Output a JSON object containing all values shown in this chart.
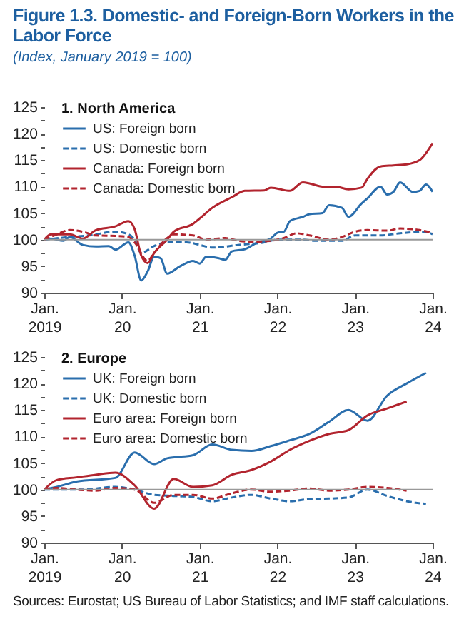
{
  "chart_data": [
    {
      "type": "line",
      "title": "1. North America",
      "annotations": [
        "Figure 1.3.  Domestic- and Foreign-Born Workers in the Labor Force",
        "(Index, January 2019 = 100)"
      ],
      "xlim": [
        "2019-01",
        "2024-01"
      ],
      "xticks": [
        {
          "value": "2019-01",
          "label": "Jan.\n2019"
        },
        {
          "value": "2020-01",
          "label": "Jan.\n20"
        },
        {
          "value": "2021-01",
          "label": "Jan.\n21"
        },
        {
          "value": "2022-01",
          "label": "Jan.\n22"
        },
        {
          "value": "2023-01",
          "label": "Jan.\n23"
        },
        {
          "value": "2024-01",
          "label": "Jan.\n24"
        }
      ],
      "ylim": [
        90,
        125
      ],
      "yticks": [
        90,
        {
          "value": 92.5,
          "label": null
        },
        95,
        {
          "value": 97.5,
          "label": null
        },
        100,
        {
          "value": 102.5,
          "label": null
        },
        105,
        {
          "value": 107.5,
          "label": null
        },
        110,
        {
          "value": 112.5,
          "label": null
        },
        115,
        {
          "value": 117.5,
          "label": null
        },
        120,
        {
          "value": 122.5,
          "label": null
        },
        125
      ],
      "legend": "top left",
      "grid": false,
      "ref_lines": [
        {
          "axis": "y",
          "value": 100,
          "color": "#999999"
        }
      ],
      "series": [
        {
          "name": "US: Foreign born",
          "color": "#2a6ead",
          "line_style": "solid",
          "x": [
            "2019-01",
            "2019-02",
            "2019-04",
            "2019-05",
            "2019-07",
            "2019-09",
            "2019-11",
            "2019-12",
            "2020-02",
            "2020-03",
            "2020-04",
            "2020-05",
            "2020-06",
            "2020-07",
            "2020-08",
            "2020-10",
            "2020-12",
            "2021-01",
            "2021-02",
            "2021-04",
            "2021-05",
            "2021-06",
            "2021-08",
            "2021-10",
            "2021-12",
            "2022-01",
            "2022-02",
            "2022-03",
            "2022-05",
            "2022-06",
            "2022-08",
            "2022-09",
            "2022-11",
            "2022-12",
            "2023-02",
            "2023-03",
            "2023-05",
            "2023-06",
            "2023-07",
            "2023-08",
            "2023-10",
            "2023-11",
            "2023-12",
            "2024-01"
          ],
          "values": [
            100,
            100.2,
            99.8,
            100.5,
            99,
            98.7,
            98.8,
            98.1,
            99.5,
            97,
            92.3,
            94,
            96.8,
            96.5,
            93.6,
            95,
            96,
            95.5,
            96.8,
            96.5,
            96.2,
            97.8,
            98.2,
            99.5,
            100.2,
            101.3,
            101.5,
            103.5,
            104.3,
            104.8,
            105,
            106.5,
            106,
            104.3,
            106.8,
            107.8,
            110,
            108.5,
            109,
            110.8,
            109,
            109.2,
            110.4,
            109
          ]
        },
        {
          "name": "US: Domestic born",
          "color": "#2a6ead",
          "line_style": "dashed",
          "x": [
            "2019-01",
            "2019-05",
            "2019-08",
            "2019-12",
            "2020-02",
            "2020-03",
            "2020-04",
            "2020-06",
            "2020-08",
            "2020-11",
            "2021-01",
            "2021-03",
            "2021-07",
            "2021-11",
            "2022-01",
            "2022-05",
            "2022-07",
            "2022-11",
            "2023-01",
            "2023-05",
            "2023-08",
            "2023-12",
            "2024-01"
          ],
          "values": [
            100,
            100.5,
            100.8,
            101.5,
            101,
            100,
            97.5,
            98.8,
            99.5,
            99.5,
            99,
            98.5,
            99,
            99.5,
            100,
            100,
            99.8,
            99.8,
            100.8,
            100.8,
            101.2,
            101.5,
            101
          ]
        },
        {
          "name": "Canada: Foreign born",
          "color": "#b2242e",
          "line_style": "solid",
          "x": [
            "2019-01",
            "2019-02",
            "2019-05",
            "2019-07",
            "2019-09",
            "2019-12",
            "2020-02",
            "2020-03",
            "2020-04",
            "2020-05",
            "2020-06",
            "2020-08",
            "2020-09",
            "2020-12",
            "2021-01",
            "2021-03",
            "2021-06",
            "2021-08",
            "2021-11",
            "2021-12",
            "2022-03",
            "2022-05",
            "2022-06",
            "2022-08",
            "2022-10",
            "2022-12",
            "2023-02",
            "2023-03",
            "2023-05",
            "2023-07",
            "2023-09",
            "2023-11",
            "2024-01"
          ],
          "values": [
            100,
            101,
            101,
            100.2,
            101.8,
            102.5,
            103.5,
            102,
            97,
            95.6,
            97.5,
            100,
            101.5,
            103,
            104,
            106,
            108,
            109.2,
            109.3,
            109.8,
            109.2,
            110.8,
            110.6,
            110,
            110,
            109.5,
            109.8,
            111.5,
            113.8,
            114,
            114.2,
            115,
            118.2
          ]
        },
        {
          "name": "Canada: Domestic born",
          "color": "#b2242e",
          "line_style": "dashed",
          "x": [
            "2019-01",
            "2019-03",
            "2019-05",
            "2019-07",
            "2019-09",
            "2019-12",
            "2020-02",
            "2020-03",
            "2020-05",
            "2020-06",
            "2020-08",
            "2020-09",
            "2020-12",
            "2021-02",
            "2021-05",
            "2021-07",
            "2021-09",
            "2021-12",
            "2022-02",
            "2022-04",
            "2022-06",
            "2022-09",
            "2022-11",
            "2023-01",
            "2023-03",
            "2023-06",
            "2023-08",
            "2023-11",
            "2024-01"
          ],
          "values": [
            100,
            101,
            101.8,
            101.5,
            100.8,
            100.7,
            100.5,
            99.5,
            96,
            97.5,
            100.3,
            101,
            100.8,
            100,
            100.3,
            99.8,
            99.6,
            99.8,
            100.3,
            101.2,
            100.8,
            100,
            100.5,
            101.5,
            101.8,
            101.7,
            102.1,
            101.8,
            101.3
          ]
        }
      ]
    },
    {
      "type": "line",
      "title": "2. Europe",
      "annotations": [
        "Sources: Eurostat; US Bureau of Labor Statistics; and IMF staff calculations."
      ],
      "xlim": [
        "2019-01",
        "2024-01"
      ],
      "xticks": [
        {
          "value": "2019-01",
          "label": "Jan.\n2019"
        },
        {
          "value": "2020-01",
          "label": "Jan.\n20"
        },
        {
          "value": "2021-01",
          "label": "Jan.\n21"
        },
        {
          "value": "2022-01",
          "label": "Jan.\n22"
        },
        {
          "value": "2023-01",
          "label": "Jan.\n23"
        },
        {
          "value": "2024-01",
          "label": "Jan.\n24"
        }
      ],
      "ylim": [
        90,
        125
      ],
      "yticks": [
        90,
        {
          "value": 92.5,
          "label": null
        },
        95,
        {
          "value": 97.5,
          "label": null
        },
        100,
        {
          "value": 102.5,
          "label": null
        },
        105,
        {
          "value": 107.5,
          "label": null
        },
        110,
        {
          "value": 112.5,
          "label": null
        },
        115,
        {
          "value": 117.5,
          "label": null
        },
        120,
        {
          "value": 122.5,
          "label": null
        },
        125
      ],
      "legend": "top left",
      "grid": false,
      "ref_lines": [
        {
          "axis": "y",
          "value": 100,
          "color": "#999999"
        }
      ],
      "series": [
        {
          "name": "UK: Foreign born",
          "color": "#2a6ead",
          "line_style": "solid",
          "x": [
            "2019-01",
            "2019-03",
            "2019-06",
            "2019-12",
            "2020-03",
            "2020-06",
            "2020-08",
            "2020-12",
            "2021-03",
            "2021-06",
            "2021-09",
            "2021-12",
            "2022-03",
            "2022-06",
            "2022-09",
            "2022-12",
            "2023-03",
            "2023-06",
            "2023-09",
            "2023-12"
          ],
          "values": [
            100,
            100.5,
            101.5,
            102.2,
            107,
            104.8,
            105.9,
            106.5,
            108.5,
            107.5,
            107.3,
            108.2,
            109.3,
            110.5,
            112.8,
            115,
            113,
            117.7,
            120,
            122
          ]
        },
        {
          "name": "UK: Domestic born",
          "color": "#2a6ead",
          "line_style": "dashed",
          "x": [
            "2019-01",
            "2019-07",
            "2019-12",
            "2020-03",
            "2020-06",
            "2020-09",
            "2020-12",
            "2021-03",
            "2021-06",
            "2021-09",
            "2021-12",
            "2022-03",
            "2022-06",
            "2022-09",
            "2022-12",
            "2023-03",
            "2023-06",
            "2023-09",
            "2023-12"
          ],
          "values": [
            100,
            100,
            100.5,
            100,
            99,
            98.8,
            98.6,
            97.8,
            98.5,
            99,
            98.3,
            97.8,
            98.2,
            98.3,
            98.5,
            100,
            98.8,
            97.8,
            97.3
          ]
        },
        {
          "name": "Euro area: Foreign born",
          "color": "#b2242e",
          "line_style": "solid",
          "x": [
            "2019-01",
            "2019-03",
            "2019-06",
            "2019-09",
            "2019-12",
            "2020-03",
            "2020-06",
            "2020-09",
            "2020-12",
            "2021-03",
            "2021-06",
            "2021-09",
            "2021-12",
            "2022-03",
            "2022-06",
            "2022-09",
            "2022-12",
            "2023-03",
            "2023-06",
            "2023-09"
          ],
          "values": [
            100,
            101.8,
            102.3,
            102.8,
            103.2,
            100.8,
            96.4,
            102,
            100.5,
            100.8,
            102.8,
            103.7,
            105.3,
            107.5,
            109.2,
            110.5,
            111.2,
            114,
            115.3,
            116.6
          ]
        },
        {
          "name": "Euro area: Domestic born",
          "color": "#b2242e",
          "line_style": "dashed",
          "x": [
            "2019-01",
            "2019-03",
            "2019-06",
            "2019-09",
            "2019-12",
            "2020-03",
            "2020-06",
            "2020-09",
            "2020-12",
            "2021-03",
            "2021-06",
            "2021-09",
            "2021-12",
            "2022-03",
            "2022-06",
            "2022-09",
            "2022-12",
            "2023-03",
            "2023-06",
            "2023-09"
          ],
          "values": [
            100,
            100.3,
            100,
            99.8,
            100.3,
            100,
            97.5,
            99,
            99,
            98.3,
            99.3,
            100,
            99.6,
            99.8,
            100.2,
            99.8,
            100,
            100.5,
            100.3,
            99.8
          ]
        }
      ]
    }
  ]
}
